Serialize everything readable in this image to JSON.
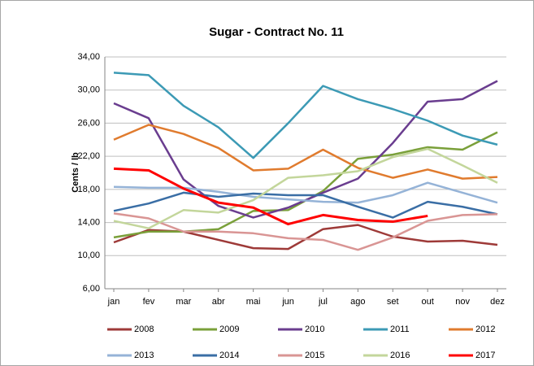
{
  "chart_data": {
    "type": "line",
    "title": "Sugar - Contract No. 11",
    "y_label": "Cents / lb",
    "categories": [
      "jan",
      "fev",
      "mar",
      "abr",
      "mai",
      "jun",
      "jul",
      "ago",
      "set",
      "out",
      "nov",
      "dez"
    ],
    "ylim": [
      6,
      34
    ],
    "yticks": [
      {
        "value": 6,
        "label": "6,00"
      },
      {
        "value": 10,
        "label": "10,00"
      },
      {
        "value": 14,
        "label": "14,00"
      },
      {
        "value": 18,
        "label": "18,00"
      },
      {
        "value": 22,
        "label": "22,00"
      },
      {
        "value": 26,
        "label": "26,00"
      },
      {
        "value": 30,
        "label": "30,00"
      },
      {
        "value": 34,
        "label": "34,00"
      }
    ],
    "grid": true,
    "legend": "bottom",
    "series": [
      {
        "name": "2008",
        "color": "#9e3a38",
        "values": [
          11.6,
          13.1,
          12.9,
          11.9,
          10.9,
          10.8,
          13.2,
          13.7,
          12.3,
          11.7,
          11.8,
          11.3
        ]
      },
      {
        "name": "2009",
        "color": "#7aa03a",
        "values": [
          12.2,
          12.9,
          12.9,
          13.2,
          15.4,
          15.5,
          17.8,
          21.7,
          22.2,
          23.1,
          22.8,
          24.9
        ]
      },
      {
        "name": "2010",
        "color": "#6a3d8f",
        "values": [
          28.4,
          26.6,
          19.2,
          16.0,
          14.6,
          15.8,
          17.6,
          19.3,
          23.6,
          28.6,
          28.9,
          31.1
        ]
      },
      {
        "name": "2011",
        "color": "#3c9ab5",
        "values": [
          32.1,
          31.8,
          28.1,
          25.5,
          21.8,
          26.0,
          30.5,
          28.9,
          27.7,
          26.3,
          24.5,
          23.4
        ]
      },
      {
        "name": "2012",
        "color": "#e07b2e",
        "values": [
          24.0,
          25.8,
          24.7,
          23.0,
          20.3,
          20.5,
          22.8,
          20.6,
          19.4,
          20.4,
          19.3,
          19.5
        ]
      },
      {
        "name": "2013",
        "color": "#95b3d7",
        "values": [
          18.3,
          18.2,
          18.2,
          17.7,
          17.1,
          16.8,
          16.5,
          16.4,
          17.3,
          18.8,
          17.6,
          16.4
        ]
      },
      {
        "name": "2014",
        "color": "#3a6ea5",
        "values": [
          15.4,
          16.3,
          17.6,
          17.1,
          17.5,
          17.3,
          17.3,
          15.9,
          14.6,
          16.5,
          15.9,
          15.0
        ]
      },
      {
        "name": "2015",
        "color": "#d99594",
        "values": [
          15.1,
          14.5,
          12.9,
          12.9,
          12.7,
          12.1,
          11.9,
          10.7,
          12.2,
          14.2,
          14.9,
          15.0
        ]
      },
      {
        "name": "2016",
        "color": "#c3d69b",
        "values": [
          14.2,
          13.3,
          15.5,
          15.2,
          16.7,
          19.4,
          19.7,
          20.2,
          21.9,
          22.9,
          20.9,
          18.8
        ]
      },
      {
        "name": "2017",
        "color": "#ff0000",
        "values": [
          20.5,
          20.3,
          18.1,
          16.4,
          15.8,
          13.8,
          14.9,
          14.3,
          14.1,
          14.8,
          null,
          null
        ]
      }
    ]
  }
}
